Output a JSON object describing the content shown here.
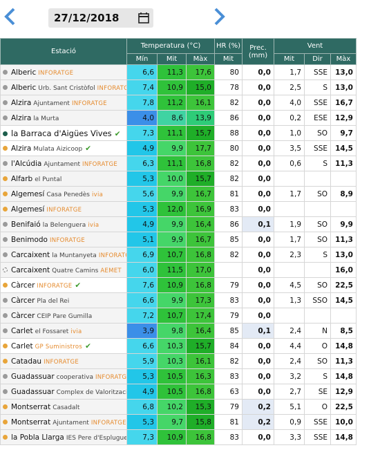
{
  "header": {
    "date": "27/12/2018"
  },
  "table": {
    "columns": {
      "station": "Estació",
      "temperature": "Temperatura (°C)",
      "t_min": "Mín",
      "t_mit": "Mit",
      "t_max": "Màx",
      "hr": "HR (%)",
      "hr_mit": "Mit",
      "prec": "Prec. (mm)",
      "wind": "Vent",
      "w_mit": "Mit",
      "w_dir": "Dir",
      "w_max": "Màx"
    },
    "rows": [
      {
        "station": "Alberic",
        "detail": null,
        "source": "INFORATGE",
        "verified": false,
        "dot": "#9a9a9a",
        "t_min": "6,6",
        "t_mit": "11,3",
        "t_max": "17,6",
        "hr": "80",
        "prec": "0,0",
        "w_mit": "1,7",
        "w_dir": "SSE",
        "w_max": "13,0"
      },
      {
        "station": "Alberic",
        "detail": "Urb. Sant Cristòfol",
        "source": "INFORATGE",
        "verified": false,
        "dot": "#9a9a9a",
        "t_min": "7,4",
        "t_mit": "10,9",
        "t_max": "15,0",
        "hr": "78",
        "prec": "0,0",
        "w_mit": "2,5",
        "w_dir": "S",
        "w_max": "13,0"
      },
      {
        "station": "Alzira",
        "detail": "Ajuntament",
        "source": "INFORATGE",
        "verified": false,
        "dot": "#9a9a9a",
        "t_min": "7,8",
        "t_mit": "11,2",
        "t_max": "16,1",
        "hr": "82",
        "prec": "0,0",
        "w_mit": "4,0",
        "w_dir": "SSE",
        "w_max": "16,7"
      },
      {
        "station": "Alzira",
        "detail": "la Murta",
        "source": null,
        "verified": false,
        "dot": "#9a9a9a",
        "t_min": "4,0",
        "t_mit": "8,6",
        "t_max": "13,9",
        "hr": "86",
        "prec": "0,0",
        "w_mit": "0,2",
        "w_dir": "ESE",
        "w_max": "12,9"
      },
      {
        "station": "la Barraca d'Aigües Vives",
        "detail": null,
        "source": null,
        "verified": true,
        "dot": "#1d5e4c",
        "t_min": "7,3",
        "t_mit": "11,1",
        "t_max": "15,7",
        "hr": "88",
        "prec": "0,0",
        "w_mit": "1,0",
        "w_dir": "SO",
        "w_max": "9,7"
      },
      {
        "station": "Alzira",
        "detail": "Mulata Aizicoop",
        "source": null,
        "verified": true,
        "dot": "#e8a53a",
        "t_min": "4,9",
        "t_mit": "9,9",
        "t_max": "17,7",
        "hr": "80",
        "prec": "0,0",
        "w_mit": "3,5",
        "w_dir": "SSE",
        "w_max": "14,5"
      },
      {
        "station": "l'Alcúdia",
        "detail": "Ajuntament",
        "source": "INFORATGE",
        "verified": false,
        "dot": "#9a9a9a",
        "t_min": "6,3",
        "t_mit": "11,1",
        "t_max": "16,8",
        "hr": "82",
        "prec": "0,0",
        "w_mit": "0,6",
        "w_dir": "S",
        "w_max": "11,3"
      },
      {
        "station": "Alfarb",
        "detail": "el Puntal",
        "source": null,
        "verified": false,
        "dot": "#e8a53a",
        "t_min": "5,3",
        "t_mit": "10,0",
        "t_max": "15,7",
        "hr": "82",
        "prec": "0,0",
        "w_mit": null,
        "w_dir": null,
        "w_max": null
      },
      {
        "station": "Algemesí",
        "detail": "Casa Penedès",
        "source": "ivia",
        "verified": false,
        "dot": "#e8a53a",
        "t_min": "5,6",
        "t_mit": "9,9",
        "t_max": "16,7",
        "hr": "81",
        "prec": "0,0",
        "w_mit": "1,7",
        "w_dir": "SO",
        "w_max": "8,9"
      },
      {
        "station": "Algemesí",
        "detail": null,
        "source": "INFORATGE",
        "verified": false,
        "dot": "#e8a53a",
        "t_min": "5,3",
        "t_mit": "12,0",
        "t_max": "16,9",
        "hr": "83",
        "prec": "0,0",
        "w_mit": null,
        "w_dir": null,
        "w_max": null
      },
      {
        "station": "Benifaió",
        "detail": "la Belenguera",
        "source": "ivia",
        "verified": false,
        "dot": "#9a9a9a",
        "t_min": "4,9",
        "t_mit": "9,9",
        "t_max": "16,4",
        "hr": "86",
        "prec": "0,1",
        "w_mit": "1,9",
        "w_dir": "SO",
        "w_max": "9,9"
      },
      {
        "station": "Benimodo",
        "detail": null,
        "source": "INFORATGE",
        "verified": false,
        "dot": "#9a9a9a",
        "t_min": "5,1",
        "t_mit": "9,9",
        "t_max": "16,7",
        "hr": "85",
        "prec": "0,0",
        "w_mit": "1,7",
        "w_dir": "SO",
        "w_max": "11,3"
      },
      {
        "station": "Carcaixent",
        "detail": "la Muntanyeta",
        "source": "INFORATGE",
        "verified": false,
        "dot": "#9a9a9a",
        "t_min": "6,9",
        "t_mit": "10,7",
        "t_max": "16,8",
        "hr": "82",
        "prec": "0,0",
        "w_mit": "2,3",
        "w_dir": "S",
        "w_max": "13,0"
      },
      {
        "station": "Carcaixent",
        "detail": "Quatre Camins",
        "source": "AEMET",
        "verified": false,
        "dot": "none",
        "t_min": "6,0",
        "t_mit": "11,5",
        "t_max": "17,0",
        "hr": null,
        "prec": "0,0",
        "w_mit": null,
        "w_dir": null,
        "w_max": "16,0"
      },
      {
        "station": "Càrcer",
        "detail": null,
        "source": "INFORATGE",
        "verified": true,
        "dot": "#e8a53a",
        "t_min": "7,6",
        "t_mit": "10,9",
        "t_max": "16,8",
        "hr": "79",
        "prec": "0,0",
        "w_mit": "4,5",
        "w_dir": "SO",
        "w_max": "22,5"
      },
      {
        "station": "Càrcer",
        "detail": "Pla del Rei",
        "source": null,
        "verified": false,
        "dot": "#9a9a9a",
        "t_min": "6,6",
        "t_mit": "9,9",
        "t_max": "17,3",
        "hr": "83",
        "prec": "0,0",
        "w_mit": "1,3",
        "w_dir": "SSO",
        "w_max": "14,5"
      },
      {
        "station": "Càrcer",
        "detail": "CEIP Pare Gumilla",
        "source": null,
        "verified": false,
        "dot": "#9a9a9a",
        "t_min": "7,2",
        "t_mit": "10,7",
        "t_max": "17,4",
        "hr": "79",
        "prec": "0,0",
        "w_mit": null,
        "w_dir": null,
        "w_max": null
      },
      {
        "station": "Carlet",
        "detail": "el Fossaret",
        "source": "ivia",
        "verified": false,
        "dot": "#9a9a9a",
        "t_min": "3,9",
        "t_mit": "9,8",
        "t_max": "16,4",
        "hr": "85",
        "prec": "0,1",
        "w_mit": "2,4",
        "w_dir": "N",
        "w_max": "8,5"
      },
      {
        "station": "Carlet",
        "detail": null,
        "source": "GP Suministros",
        "verified": true,
        "dot": "#e8a53a",
        "t_min": "6,6",
        "t_mit": "10,3",
        "t_max": "15,7",
        "hr": "84",
        "prec": "0,0",
        "w_mit": "4,4",
        "w_dir": "O",
        "w_max": "14,8"
      },
      {
        "station": "Catadau",
        "detail": null,
        "source": "INFORATGE",
        "verified": false,
        "dot": "#e8a53a",
        "t_min": "5,9",
        "t_mit": "10,3",
        "t_max": "16,1",
        "hr": "82",
        "prec": "0,0",
        "w_mit": "2,4",
        "w_dir": "SO",
        "w_max": "11,3"
      },
      {
        "station": "Guadassuar",
        "detail": "cooperativa",
        "source": "INFORATGE",
        "verified": false,
        "dot": "#9a9a9a",
        "t_min": "5,3",
        "t_mit": "10,5",
        "t_max": "16,3",
        "hr": "83",
        "prec": "0,0",
        "w_mit": "3,2",
        "w_dir": "S",
        "w_max": "14,8"
      },
      {
        "station": "Guadassuar",
        "detail": "Complex de Valorització de Residus",
        "source": null,
        "verified": false,
        "dot": "#9a9a9a",
        "t_min": "4,9",
        "t_mit": "10,5",
        "t_max": "16,8",
        "hr": "63",
        "prec": "0,0",
        "w_mit": "2,7",
        "w_dir": "SE",
        "w_max": "12,9"
      },
      {
        "station": "Montserrat",
        "detail": "Casadalt",
        "source": null,
        "verified": false,
        "dot": "#e8a53a",
        "t_min": "6,8",
        "t_mit": "10,2",
        "t_max": "15,3",
        "hr": "79",
        "prec": "0,2",
        "w_mit": "5,1",
        "w_dir": "O",
        "w_max": "22,5"
      },
      {
        "station": "Montserrat",
        "detail": "Ajuntament",
        "source": "INFORATGE",
        "verified": false,
        "dot": "#e8a53a",
        "t_min": "5,3",
        "t_mit": "9,7",
        "t_max": "15,8",
        "hr": "81",
        "prec": "0,2",
        "w_mit": "0,9",
        "w_dir": "SSE",
        "w_max": "10,0"
      },
      {
        "station": "la Pobla Llarga",
        "detail": "IES Pere d'Esplugues",
        "source": null,
        "verified": false,
        "dot": "#e8a53a",
        "t_min": "7,3",
        "t_mit": "10,9",
        "t_max": "16,8",
        "hr": "83",
        "prec": "0,0",
        "w_mit": "3,3",
        "w_dir": "SSE",
        "w_max": "14,8"
      }
    ]
  }
}
